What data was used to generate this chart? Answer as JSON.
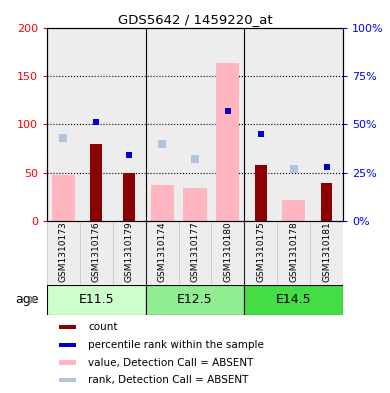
{
  "title": "GDS5642 / 1459220_at",
  "samples": [
    "GSM1310173",
    "GSM1310176",
    "GSM1310179",
    "GSM1310174",
    "GSM1310177",
    "GSM1310180",
    "GSM1310175",
    "GSM1310178",
    "GSM1310181"
  ],
  "count_values": [
    0,
    80,
    50,
    0,
    0,
    0,
    58,
    0,
    40
  ],
  "percentile_rank_pct": [
    null,
    51,
    34,
    null,
    null,
    57,
    45,
    null,
    28
  ],
  "value_absent": [
    48,
    null,
    null,
    37,
    34,
    163,
    null,
    22,
    null
  ],
  "rank_absent_pct": [
    43,
    null,
    null,
    40,
    32,
    null,
    null,
    27,
    null
  ],
  "groups": [
    {
      "label": "E11.5",
      "start": 0,
      "end": 2
    },
    {
      "label": "E12.5",
      "start": 3,
      "end": 5
    },
    {
      "label": "E14.5",
      "start": 6,
      "end": 8
    }
  ],
  "ylim_left": [
    0,
    200
  ],
  "ylim_right": [
    0,
    100
  ],
  "yticks_left": [
    0,
    50,
    100,
    150,
    200
  ],
  "ytick_labels_left": [
    "0",
    "50",
    "100",
    "150",
    "200"
  ],
  "ytick_labels_right": [
    "0%",
    "25%",
    "50%",
    "75%",
    "100%"
  ],
  "color_count": "#8B0000",
  "color_percentile": "#0000CD",
  "color_value_absent": "#FFB6C1",
  "color_rank_absent": "#B0C4DE",
  "group_colors": [
    "#CCFFCC",
    "#90EE90",
    "#00CC44"
  ],
  "legend_items": [
    {
      "color": "#8B0000",
      "label": "count"
    },
    {
      "color": "#0000CD",
      "label": "percentile rank within the sample"
    },
    {
      "color": "#FFB6C1",
      "label": "value, Detection Call = ABSENT"
    },
    {
      "color": "#B0C4DE",
      "label": "rank, Detection Call = ABSENT"
    }
  ],
  "col_bg": "#CCCCCC",
  "plot_bg": "#FFFFFF",
  "age_label": "age"
}
